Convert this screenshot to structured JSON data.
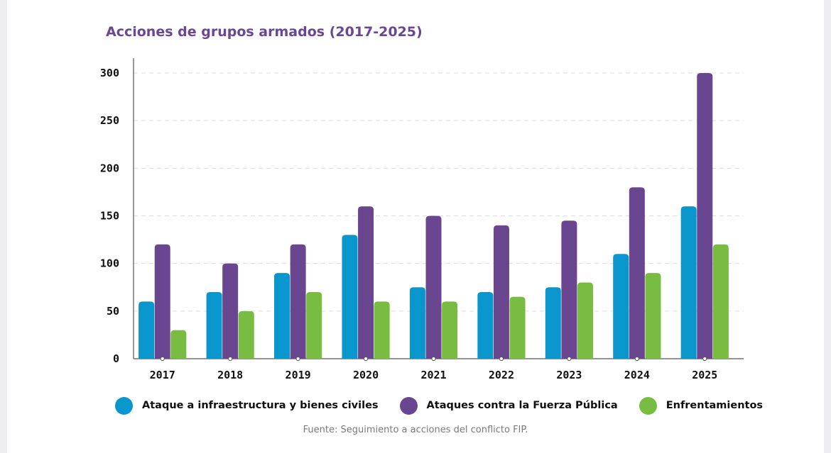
{
  "chart_data": {
    "type": "bar",
    "title": "Acciones de grupos armados (2017-2025)",
    "xlabel": "",
    "ylabel": "",
    "categories": [
      "2017",
      "2018",
      "2019",
      "2020",
      "2021",
      "2022",
      "2023",
      "2024",
      "2025"
    ],
    "series": [
      {
        "name": "Ataque a infraestructura y bienes civiles",
        "color": "#0896cc",
        "values": [
          60,
          70,
          90,
          130,
          75,
          70,
          75,
          110,
          160
        ]
      },
      {
        "name": "Ataques contra la Fuerza Pública",
        "color": "#6b4690",
        "values": [
          120,
          100,
          120,
          160,
          150,
          140,
          145,
          180,
          300
        ]
      },
      {
        "name": "Enfrentamientos",
        "color": "#78bd42",
        "values": [
          30,
          50,
          70,
          60,
          60,
          65,
          80,
          90,
          120
        ]
      }
    ],
    "ylim": [
      0,
      300
    ],
    "yticks": [
      "0",
      "50",
      "100",
      "150",
      "200",
      "250",
      "300"
    ],
    "grid": true,
    "legend_position": "bottom",
    "source": "Fuente: Seguimiento a acciones del conflicto FIP."
  }
}
